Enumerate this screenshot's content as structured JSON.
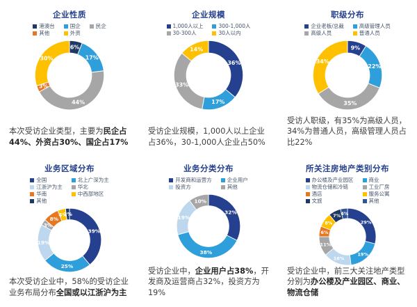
{
  "page": {
    "background": "#ffffff"
  },
  "palette": {
    "navy": "#24408E",
    "dark_navy": "#1F3864",
    "medium_blue": "#2F5597",
    "cyan": "#2E9FDA",
    "light_blue": "#BDD7EE",
    "gray": "#A6A6A6",
    "orange": "#E87722",
    "yellow": "#FFC000",
    "title_color": "#24408E",
    "legend_text_color": "#44546A",
    "caption_text_color": "#3F3F3F"
  },
  "chart_data": [
    {
      "type": "pie",
      "subtype": "donut",
      "title": "企业性质",
      "legend_position": "top",
      "legend_cols": 3,
      "labels": [
        "港澳台",
        "国企",
        "民企",
        "其他",
        "外资"
      ],
      "values": [
        6,
        17,
        44,
        3,
        30
      ],
      "colors": [
        "#1F3864",
        "#2E9FDA",
        "#A6A6A6",
        "#E87722",
        "#FFC000"
      ],
      "value_suffix": "%",
      "caption_parts": [
        {
          "text": "本次受访企业类型，主要为",
          "bold": false
        },
        {
          "text": "民企占44%、外资占30%、国企占17%",
          "bold": true
        }
      ]
    },
    {
      "type": "pie",
      "subtype": "donut",
      "title": "企业规模",
      "legend_position": "top",
      "legend_cols": 2,
      "labels": [
        "1,000人以上",
        "300-1,000人",
        "30-300人",
        "30人以内"
      ],
      "values": [
        36,
        17,
        33,
        14
      ],
      "colors": [
        "#24408E",
        "#2E9FDA",
        "#A6A6A6",
        "#FFC000"
      ],
      "value_suffix": "%",
      "caption_parts": [
        {
          "text": "受访企业规模，1,000人以上企业占36%，30-1,000人企业占50%",
          "bold": false
        }
      ]
    },
    {
      "type": "pie",
      "subtype": "donut",
      "title": "职级分布",
      "legend_position": "top",
      "legend_cols": 2,
      "labels": [
        "企业老板/总裁",
        "高级管理人员",
        "高级人员",
        "普通人员"
      ],
      "values": [
        9,
        22,
        35,
        34
      ],
      "colors": [
        "#24408E",
        "#2E9FDA",
        "#A6A6A6",
        "#FFC000"
      ],
      "value_suffix": "%",
      "caption_parts": [
        {
          "text": "受访人职级，有35%为高级人员，34%为普通人员，高级管理人员占比22%",
          "bold": false
        }
      ]
    },
    {
      "type": "pie",
      "subtype": "donut",
      "title": "业务区域分布",
      "legend_position": "top",
      "legend_cols": 2,
      "labels": [
        "全国",
        "北上广深为主",
        "江浙沪为主",
        "华北",
        "华南",
        "中西部地区",
        "其他"
      ],
      "values": [
        39,
        25,
        19,
        3,
        8,
        4,
        2
      ],
      "colors": [
        "#24408E",
        "#2E9FDA",
        "#BDD7EE",
        "#A6A6A6",
        "#E87722",
        "#FFC000",
        "#1F3864"
      ],
      "value_suffix": "%",
      "caption_parts": [
        {
          "text": "本次受访企业中，58%的受访企业业务布局分布",
          "bold": false
        },
        {
          "text": "全国或以江浙沪为主",
          "bold": true
        }
      ]
    },
    {
      "type": "pie",
      "subtype": "donut",
      "title": "业务分类分布",
      "legend_position": "top",
      "legend_cols": 2,
      "labels": [
        "开发商和运营方",
        "企业用户",
        "投资方",
        "其他"
      ],
      "values": [
        32,
        38,
        19,
        10
      ],
      "colors": [
        "#24408E",
        "#2E9FDA",
        "#BDD7EE",
        "#A6A6A6"
      ],
      "value_suffix": "%",
      "caption_parts": [
        {
          "text": "受访企业中，",
          "bold": false
        },
        {
          "text": "企业用户占38%",
          "bold": true
        },
        {
          "text": "，开发商及运营商占32%，投资方为19%",
          "bold": false
        }
      ]
    },
    {
      "type": "pie",
      "subtype": "donut",
      "title": "所关注房地产类别分布",
      "legend_position": "top",
      "legend_cols": 2,
      "labels": [
        "办公楼及产业园区",
        "商业",
        "物流仓储和冷链",
        "工业厂房",
        "酒店",
        "服务公寓",
        "文旅",
        "其他"
      ],
      "values": [
        29,
        19,
        16,
        11,
        6,
        8,
        7,
        4
      ],
      "colors": [
        "#24408E",
        "#2E9FDA",
        "#BDD7EE",
        "#A6A6A6",
        "#E87722",
        "#FFC000",
        "#1F3864",
        "#2F5597"
      ],
      "value_suffix": "%",
      "caption_parts": [
        {
          "text": "受访企业中，前三大关注地产类型分别为",
          "bold": false
        },
        {
          "text": "办公楼及产业园区、商业、物流仓储",
          "bold": true
        }
      ]
    }
  ]
}
